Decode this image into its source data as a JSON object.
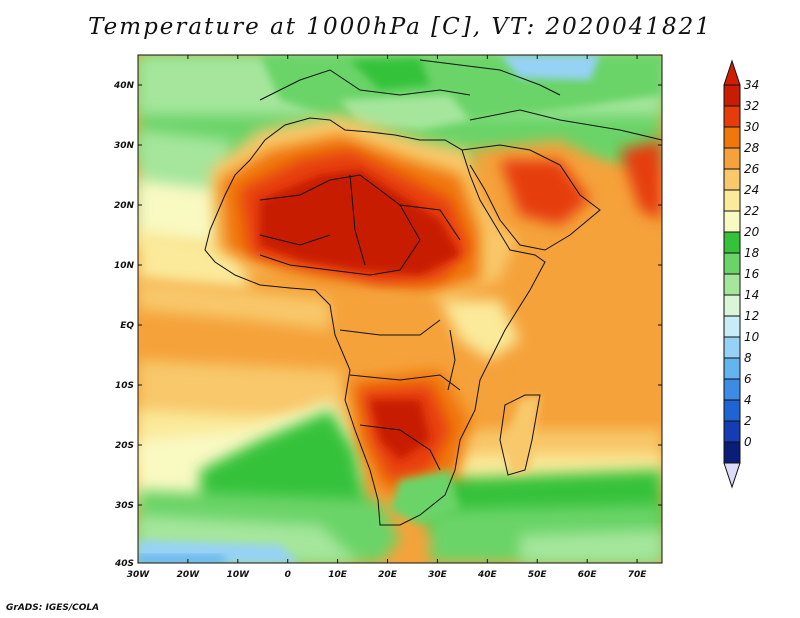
{
  "title": "Temperature at 1000hPa [C], VT: 2020041821",
  "footer": "GrADS: IGES/COLA",
  "map": {
    "lon_range": [
      -30,
      75
    ],
    "lat_range": [
      -40,
      45
    ],
    "lon_ticks": [
      "30W",
      "20W",
      "10W",
      "0",
      "10E",
      "20E",
      "30E",
      "40E",
      "50E",
      "60E",
      "70E"
    ],
    "lat_ticks": [
      "40N",
      "30N",
      "20N",
      "10N",
      "EQ",
      "10S",
      "20S",
      "30S",
      "40S"
    ]
  },
  "colorbar": {
    "levels": [
      "34",
      "32",
      "30",
      "28",
      "26",
      "24",
      "22",
      "20",
      "18",
      "16",
      "14",
      "12",
      "10",
      "8",
      "6",
      "4",
      "2",
      "0"
    ],
    "colors": [
      "#c81d00",
      "#e63c0c",
      "#f0780a",
      "#f5a23a",
      "#f8c86a",
      "#faea9a",
      "#f9f9c2",
      "#35c23a",
      "#6bd468",
      "#a5e69c",
      "#dbf5d9",
      "#c8ecf8",
      "#96d2f5",
      "#64b4f0",
      "#3c8ce6",
      "#1e64d2",
      "#143cb4",
      "#0a1e78"
    ],
    "top_arrow_color": "#d21e00",
    "bottom_arrow_color": "#dcdcfa"
  }
}
